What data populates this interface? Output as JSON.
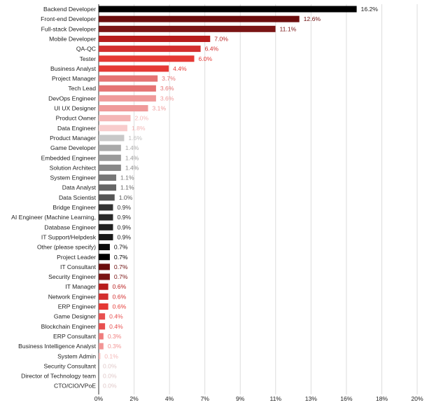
{
  "chart_data": {
    "type": "bar",
    "orientation": "horizontal",
    "title": "",
    "xlabel": "",
    "ylabel": "",
    "xlim": [
      0,
      20
    ],
    "x_ticks": [
      "0%",
      "2%",
      "4%",
      "7%",
      "9%",
      "11%",
      "13%",
      "16%",
      "18%",
      "20%"
    ],
    "grid": true,
    "value_suffix": "%",
    "categories": [
      "Backend Developer",
      "Front-end Developer",
      "Full-stack Developer",
      "Mobile Developer",
      "QA-QC",
      "Tester",
      "Business Analyst",
      "Project Manager",
      "Tech Lead",
      "DevOps Engineer",
      "UI UX Designer",
      "Product Owner",
      "Data Engineer",
      "Product Manager",
      "Game Developer",
      "Embedded Engineer",
      "Solution Architect",
      "System Engineer",
      "Data Analyst",
      "Data Scientist",
      "Bridge Engineer",
      "AI Engineer (Machine Learning,",
      "Database Engineer",
      "IT Support/Helpdesk",
      "Other (please specify)",
      "Project Leader",
      "IT Consultant",
      "Security Engineer",
      "IT Manager",
      "Network Engineer",
      "ERP Engineer",
      "Game Designer",
      "Blockchain Engineer",
      "ERP Consultant",
      "Business Intelligence Analyst",
      "System Admin",
      "Security Consultant",
      "Director of Technology team",
      "CTO/CIO/VPoE"
    ],
    "values": [
      16.2,
      12.6,
      11.1,
      7.0,
      6.4,
      6.0,
      4.4,
      3.7,
      3.6,
      3.6,
      3.1,
      2.0,
      1.8,
      1.6,
      1.4,
      1.4,
      1.4,
      1.1,
      1.1,
      1.0,
      0.9,
      0.9,
      0.9,
      0.9,
      0.7,
      0.7,
      0.7,
      0.7,
      0.6,
      0.6,
      0.6,
      0.4,
      0.4,
      0.3,
      0.3,
      0.1,
      0.0,
      0.0,
      0.0
    ],
    "value_labels": [
      "16.2%",
      "12.6%",
      "11.1%",
      "7.0%",
      "6.4%",
      "6.0%",
      "4.4%",
      "3.7%",
      "3.6%",
      "3.6%",
      "3.1%",
      "2.0%",
      "1.8%",
      "1.6%",
      "1.4%",
      "1.4%",
      "1.4%",
      "1.1%",
      "1.1%",
      "1.0%",
      "0.9%",
      "0.9%",
      "0.9%",
      "0.9%",
      "0.7%",
      "0.7%",
      "0.7%",
      "0.7%",
      "0.6%",
      "0.6%",
      "0.6%",
      "0.4%",
      "0.4%",
      "0.3%",
      "0.3%",
      "0.1%",
      "0.0%",
      "0.0%",
      "0.0%"
    ],
    "bar_colors": [
      "#000000",
      "#6b0d0d",
      "#7a1414",
      "#b71c1c",
      "#d32f2f",
      "#e53935",
      "#e53935",
      "#e57373",
      "#e57373",
      "#ef9a9a",
      "#ef9a9a",
      "#f4b6b6",
      "#f8cccc",
      "#c8c8c8",
      "#a9a9a9",
      "#9a9a9a",
      "#888888",
      "#777777",
      "#666666",
      "#555555",
      "#333333",
      "#2a2a2a",
      "#222222",
      "#1a1a1a",
      "#0a0a0a",
      "#000000",
      "#6b0d0d",
      "#7a1414",
      "#b71c1c",
      "#d32f2f",
      "#e53935",
      "#e85050",
      "#e85050",
      "#ef7d7d",
      "#f29595",
      "#f4b6b6",
      "#f4d0d0",
      "#f6dada",
      "#f8e0e0"
    ],
    "label_colors": [
      "#222222",
      "#6b0d0d",
      "#7a1414",
      "#b71c1c",
      "#d32f2f",
      "#e53935",
      "#e53935",
      "#e57373",
      "#e57373",
      "#ef9a9a",
      "#ef9a9a",
      "#f4b6b6",
      "#f4b6b6",
      "#bdbdbd",
      "#a9a9a9",
      "#999999",
      "#888888",
      "#777777",
      "#666666",
      "#555555",
      "#333333",
      "#2a2a2a",
      "#222222",
      "#1a1a1a",
      "#0a0a0a",
      "#000000",
      "#6b0d0d",
      "#7a1414",
      "#b71c1c",
      "#d32f2f",
      "#e53935",
      "#e85050",
      "#e85050",
      "#ef7d7d",
      "#f29595",
      "#f4b6b6",
      "#e0c8c8",
      "#e0c8c8",
      "#e0c8c8"
    ]
  }
}
